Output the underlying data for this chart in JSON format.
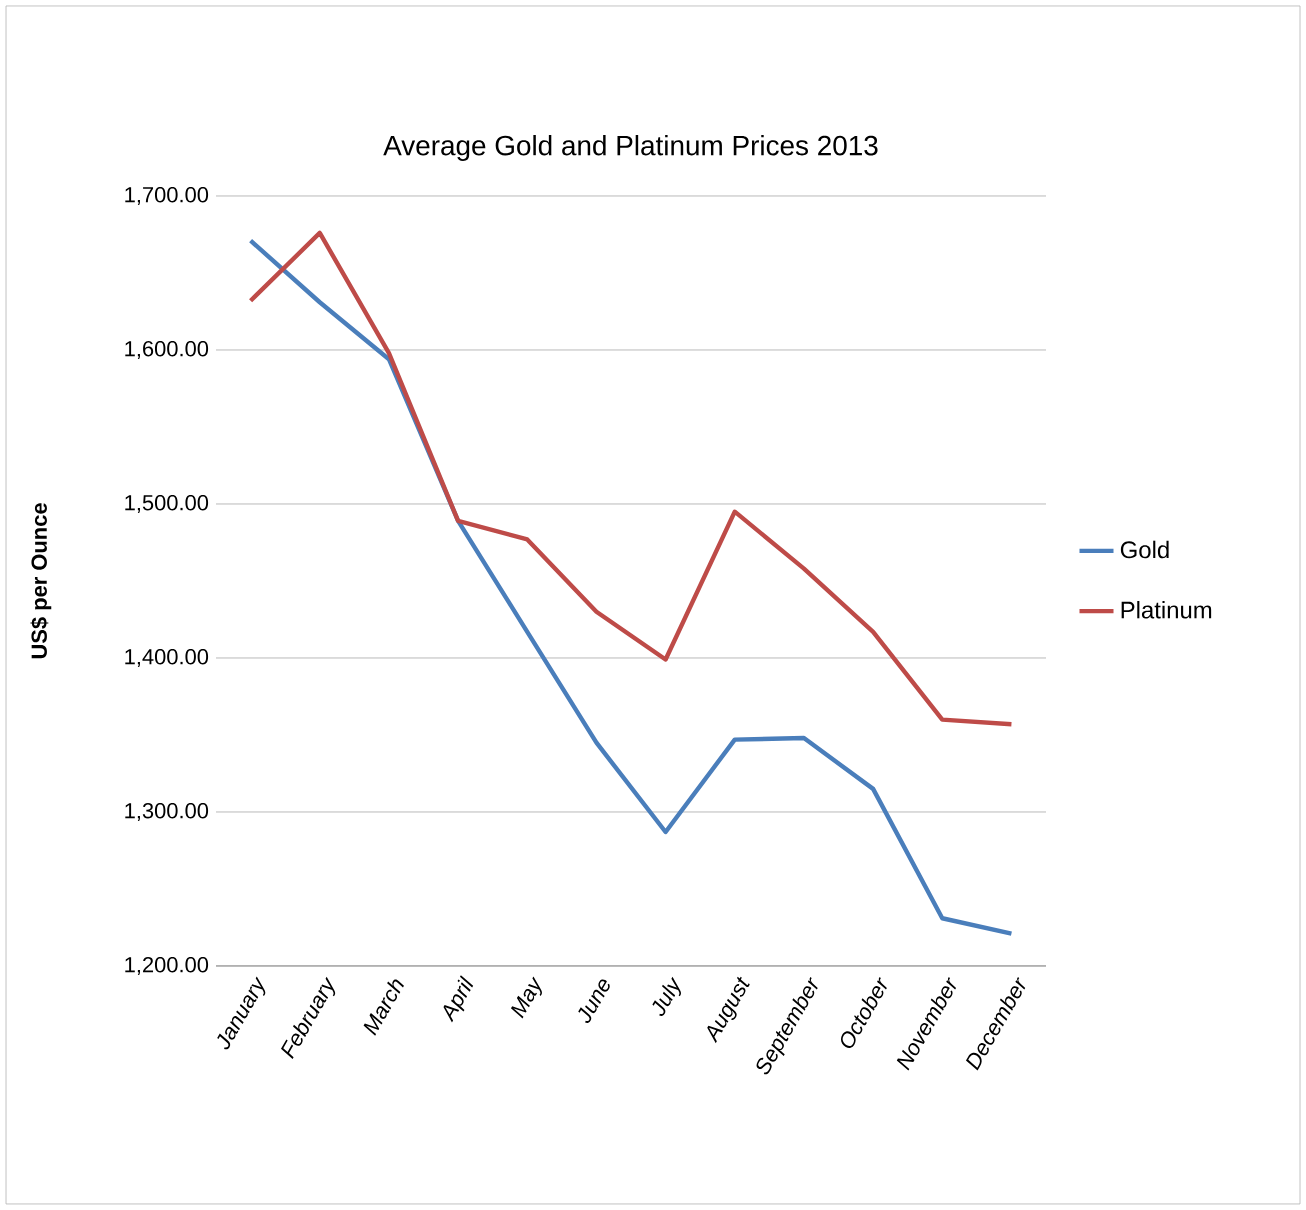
{
  "chart_data": {
    "type": "line",
    "title": "Average Gold and Platinum Prices 2013",
    "ylabel": "US$ per Ounce",
    "categories": [
      "January",
      "February",
      "March",
      "April",
      "May",
      "June",
      "July",
      "August",
      "September",
      "October",
      "November",
      "December"
    ],
    "series": [
      {
        "name": "Gold",
        "color": "#4a7ebb",
        "values": [
          1671,
          1631,
          1594,
          1489,
          1417,
          1345,
          1287,
          1347,
          1348,
          1315,
          1231,
          1221
        ]
      },
      {
        "name": "Platinum",
        "color": "#be4b48",
        "values": [
          1632,
          1676,
          1598,
          1489,
          1477,
          1430,
          1399,
          1495,
          1458,
          1417,
          1360,
          1357
        ]
      }
    ],
    "ylim": [
      1200,
      1700
    ],
    "yticks": [
      {
        "value": 1200,
        "label": "1,200.00"
      },
      {
        "value": 1300,
        "label": "1,300.00"
      },
      {
        "value": 1400,
        "label": "1,400.00"
      },
      {
        "value": 1500,
        "label": "1,500.00"
      },
      {
        "value": 1600,
        "label": "1,600.00"
      },
      {
        "value": 1700,
        "label": "1,700.00"
      }
    ],
    "grid": "y",
    "legend": "right",
    "marker": "none",
    "line_style": "solid"
  }
}
